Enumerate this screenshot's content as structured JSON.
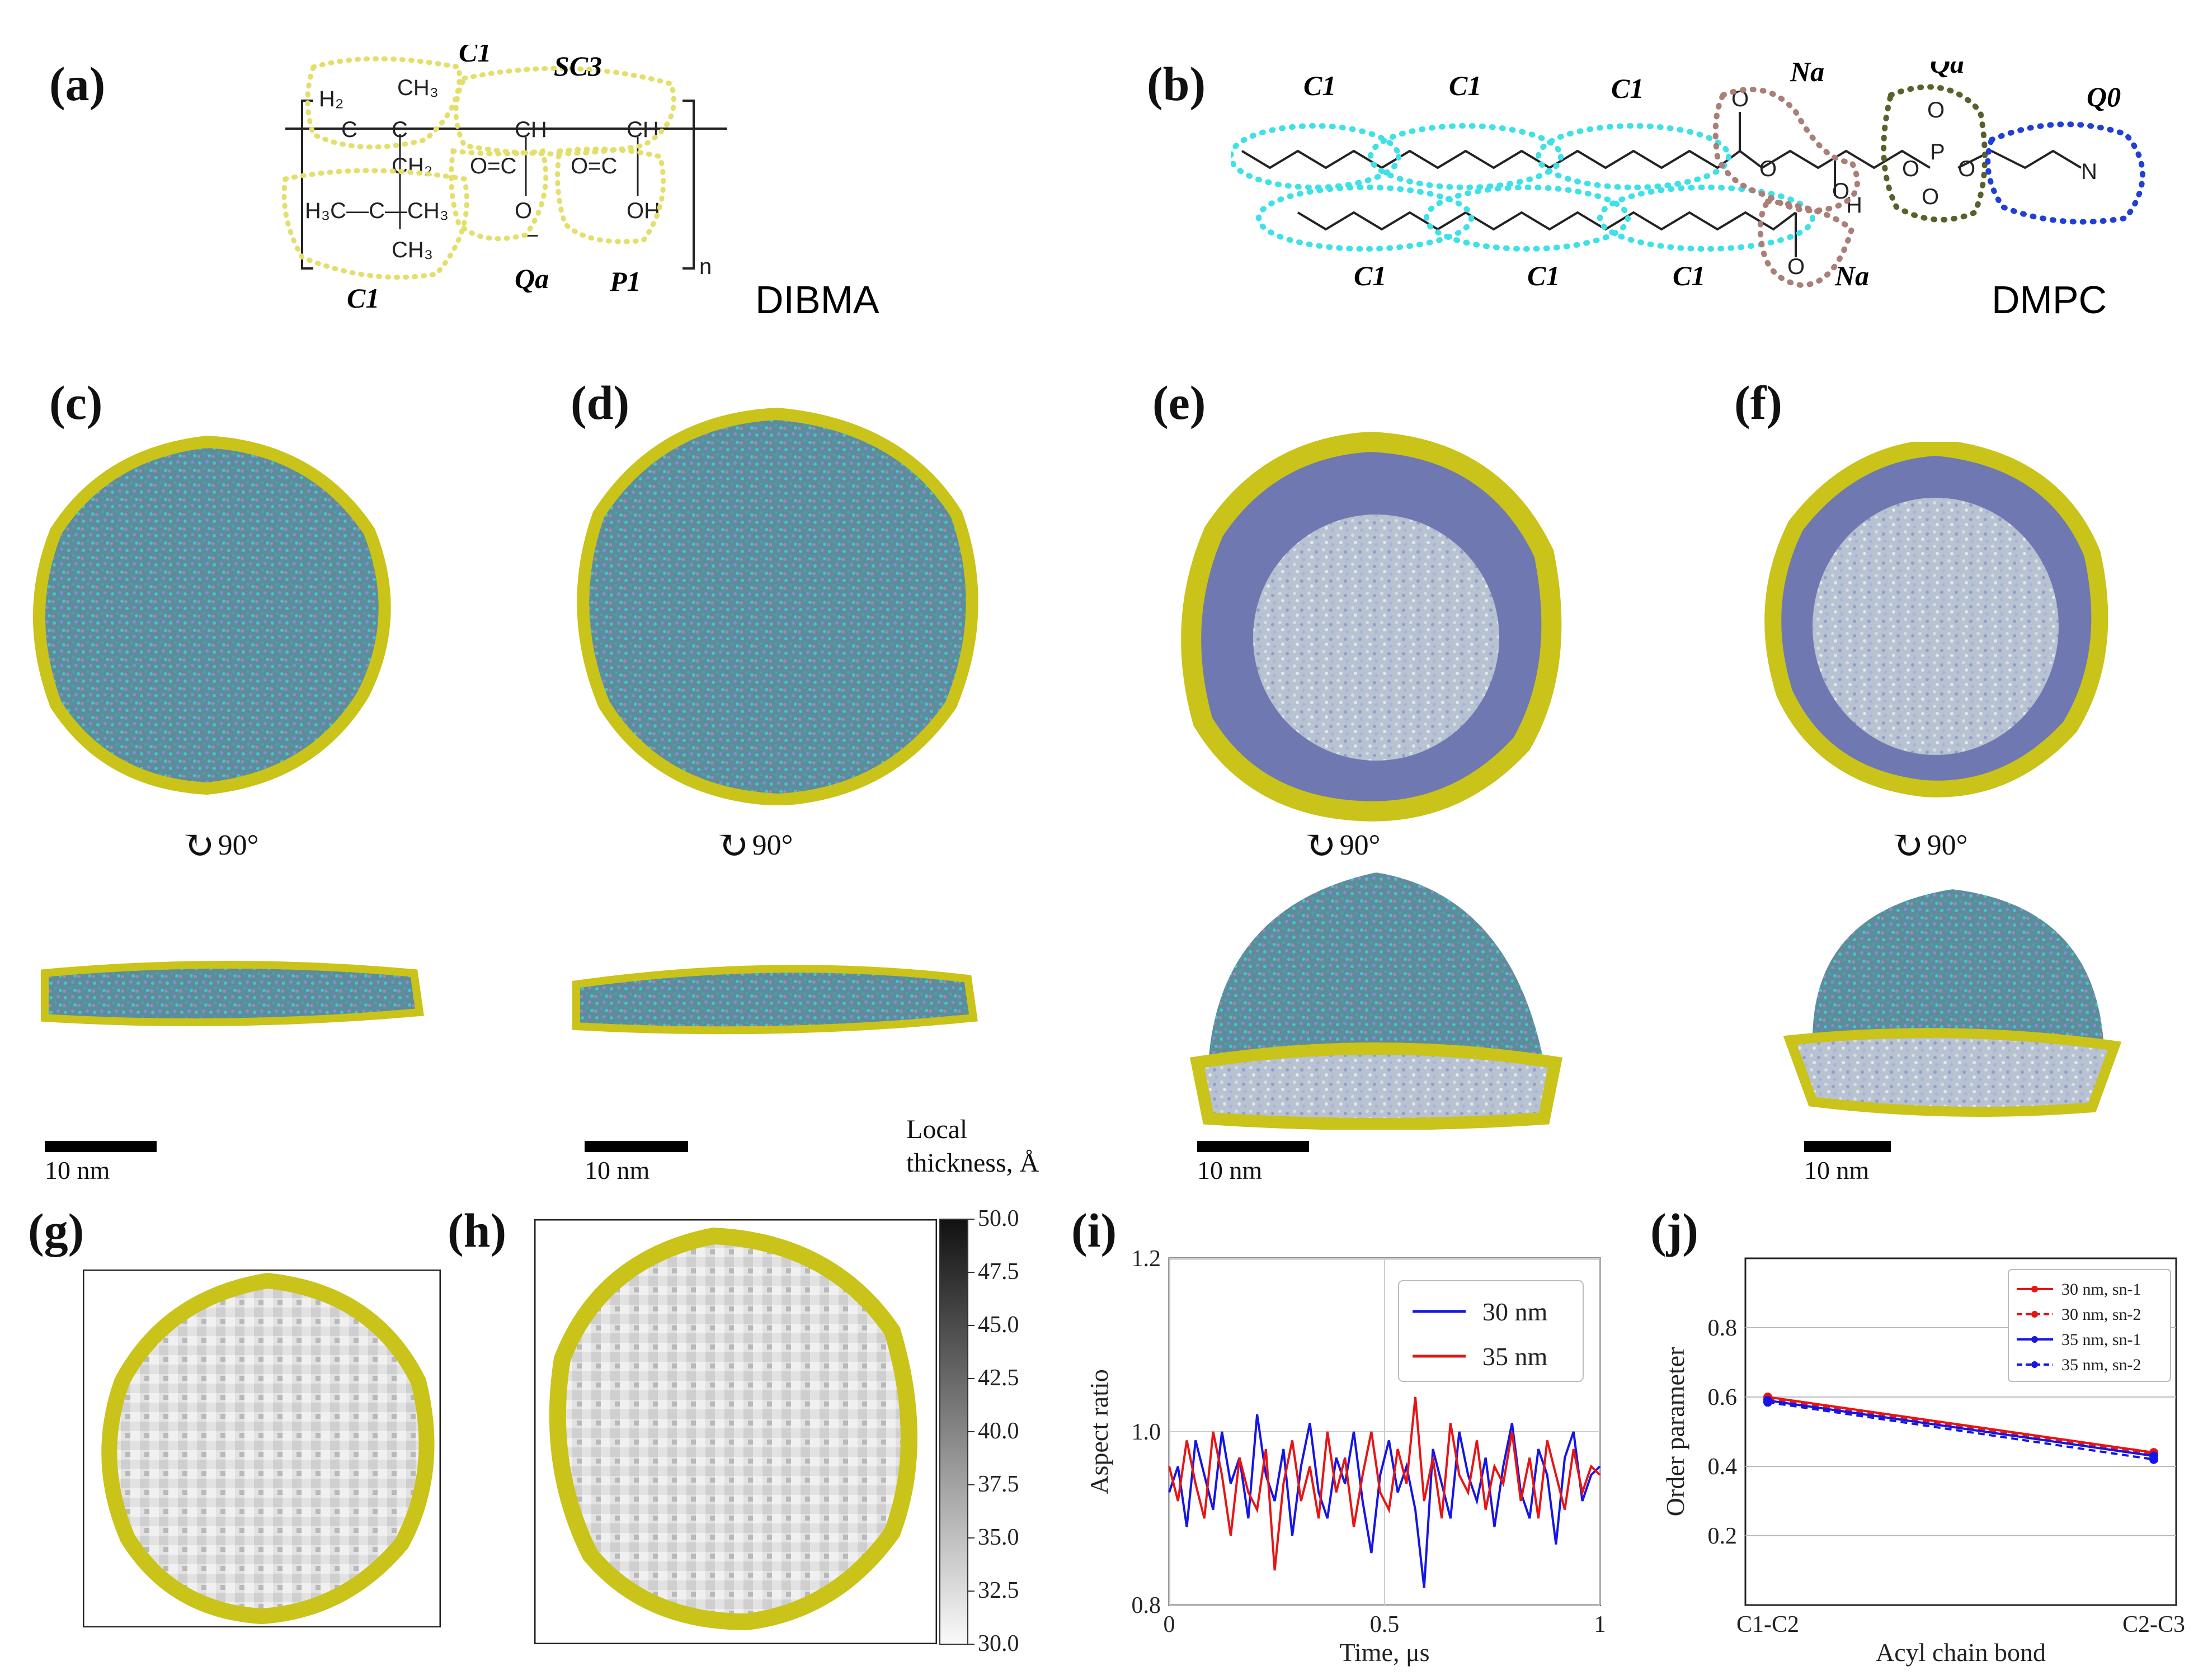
{
  "panels": {
    "a": "(a)",
    "b": "(b)",
    "c": "(c)",
    "d": "(d)",
    "e": "(e)",
    "f": "(f)",
    "g": "(g)",
    "h": "(h)",
    "i": "(i)",
    "j": "(j)"
  },
  "dibma": {
    "name": "DIBMA",
    "beads": [
      "C1",
      "SC3",
      "C1",
      "Qa",
      "P1"
    ],
    "repeat": "n"
  },
  "dmpc": {
    "name": "DMPC",
    "beads_top": [
      "C1",
      "C1",
      "C1",
      "Na",
      "Qa",
      "Q0"
    ],
    "beads_bottom": [
      "C1",
      "C1",
      "C1",
      "Na"
    ],
    "atoms": {
      "h": "H",
      "p": "P",
      "o": "O",
      "n": "N"
    }
  },
  "rotation": {
    "label": "90°"
  },
  "scalebar": {
    "label": "10 nm"
  },
  "colorbar": {
    "title_line1": "Local",
    "title_line2": "thickness, Å",
    "ticks": [
      "50.0",
      "47.5",
      "45.0",
      "42.5",
      "40.0",
      "37.5",
      "35.0",
      "32.5",
      "30.0"
    ]
  },
  "colors": {
    "yellow": "#c9c31a",
    "blue_line": "#1515e6",
    "red_line": "#e61515",
    "bead_yellow": "#e3df6a",
    "bead_cyan": "#3fe0e8",
    "bead_brown": "#a97f78",
    "bead_olive": "#59602a",
    "bead_blue": "#1f3fd6"
  },
  "chart_data": [
    {
      "type": "line",
      "panel": "i",
      "xlabel": "Time, μs",
      "ylabel": "Aspect ratio",
      "xlim": [
        0,
        1
      ],
      "ylim": [
        0.8,
        1.2
      ],
      "xticks": [
        "0",
        "0.5",
        "1"
      ],
      "yticks": [
        "0.8",
        "1.0",
        "1.2"
      ],
      "legend": "top-right",
      "series": [
        {
          "name": "30 nm",
          "color": "#1515e6",
          "values": [
            0.93,
            0.96,
            0.89,
            0.99,
            0.95,
            0.91,
            1.0,
            0.94,
            0.97,
            0.9,
            1.02,
            0.95,
            0.92,
            0.98,
            0.88,
            0.96,
            1.01,
            0.93,
            0.9,
            0.97,
            0.94,
            1.0,
            0.92,
            0.86,
            0.95,
            0.99,
            0.93,
            0.96,
            0.91,
            0.82,
            0.98,
            0.94,
            0.9,
            1.0,
            0.95,
            0.92,
            0.97,
            0.89,
            0.96,
            1.01,
            0.93,
            0.9,
            0.98,
            0.95,
            0.87,
            0.97,
            1.0,
            0.92,
            0.95,
            0.96
          ]
        },
        {
          "name": "35 nm",
          "color": "#e61515",
          "values": [
            0.96,
            0.92,
            0.99,
            0.94,
            0.9,
            1.0,
            0.95,
            0.88,
            0.97,
            0.93,
            0.91,
            0.98,
            0.84,
            0.94,
            0.99,
            0.92,
            0.96,
            0.9,
            1.0,
            0.93,
            0.97,
            0.89,
            0.95,
            1.0,
            0.93,
            0.91,
            0.98,
            0.94,
            1.04,
            0.92,
            0.97,
            0.9,
            1.01,
            0.95,
            0.93,
            0.99,
            0.91,
            0.96,
            0.94,
            1.0,
            0.92,
            0.97,
            0.9,
            0.99,
            0.95,
            0.91,
            0.98,
            0.93,
            0.96,
            0.95
          ]
        }
      ]
    },
    {
      "type": "line",
      "panel": "j",
      "xlabel": "Acyl chain bond",
      "ylabel": "Order parameter",
      "categories": [
        "C1-C2",
        "C2-C3"
      ],
      "ylim": [
        0,
        1.0
      ],
      "yticks": [
        "0.2",
        "0.4",
        "0.6",
        "0.8"
      ],
      "legend": "top-right",
      "series": [
        {
          "name": "30 nm, sn-1",
          "color": "#e61515",
          "dashed": false,
          "values": [
            0.6,
            0.44
          ]
        },
        {
          "name": "30 nm, sn-2",
          "color": "#e61515",
          "dashed": true,
          "values": [
            0.595,
            0.435
          ]
        },
        {
          "name": "35 nm, sn-1",
          "color": "#1515e6",
          "dashed": false,
          "values": [
            0.59,
            0.43
          ]
        },
        {
          "name": "35 nm, sn-2",
          "color": "#1515e6",
          "dashed": true,
          "values": [
            0.585,
            0.42
          ]
        }
      ]
    }
  ]
}
